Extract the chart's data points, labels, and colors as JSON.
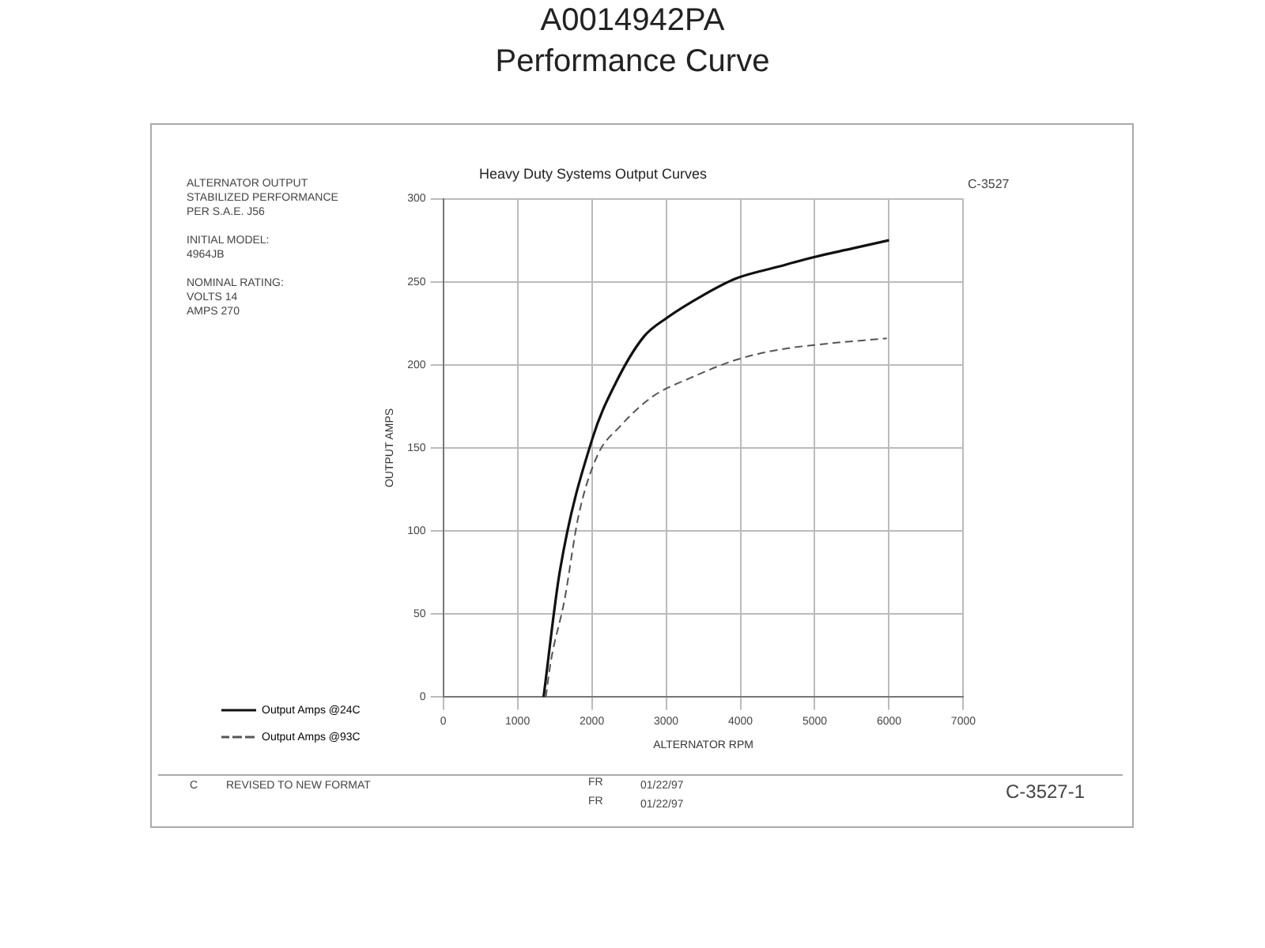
{
  "chart_data": {
    "type": "line",
    "title": "Heavy Duty Systems Output Curves",
    "xlabel": "ALTERNATOR RPM",
    "ylabel": "OUTPUT AMPS",
    "xlim": [
      0,
      7000
    ],
    "xticks": [
      0,
      1000,
      2000,
      3000,
      4000,
      5000,
      6000,
      7000
    ],
    "ylim": [
      0,
      300
    ],
    "yticks": [
      0,
      50,
      100,
      150,
      200,
      250,
      300
    ],
    "grid": true,
    "legend": "bottom left",
    "marker": "none",
    "series": [
      {
        "name": "Output Amps @24C",
        "color": "#111111",
        "line_style": "solid",
        "x": [
          1350,
          1570,
          2010,
          2320,
          2700,
          3000,
          3500,
          3940,
          4500,
          5000,
          5500,
          6000
        ],
        "values": [
          0,
          76,
          156,
          189,
          217,
          228,
          242,
          252,
          259,
          265,
          270,
          275
        ]
      },
      {
        "name": "Output Amps @93C",
        "color": "#555555",
        "line_style": "dashed",
        "x": [
          1380,
          1450,
          1630,
          1820,
          2070,
          2380,
          2820,
          3320,
          3940,
          4500,
          5000,
          5970
        ],
        "values": [
          0,
          22,
          58,
          109,
          145,
          163,
          181,
          192,
          203,
          209,
          212,
          216
        ]
      }
    ],
    "annotations": [
      "A0014942PA",
      "Performance Curve",
      "ALTERNATOR OUTPUT\nSTABILIZED PERFORMANCE\nPER S.A.E. J56",
      "INITIAL MODEL:\n4964JB",
      "NOMINAL RATING:\nVOLTS 14\nAMPS 270",
      "C-3527",
      "C-3527-1",
      "C",
      "REVISED TO NEW FORMAT",
      "FR",
      "FR",
      "01/22/97",
      "01/22/97"
    ]
  }
}
